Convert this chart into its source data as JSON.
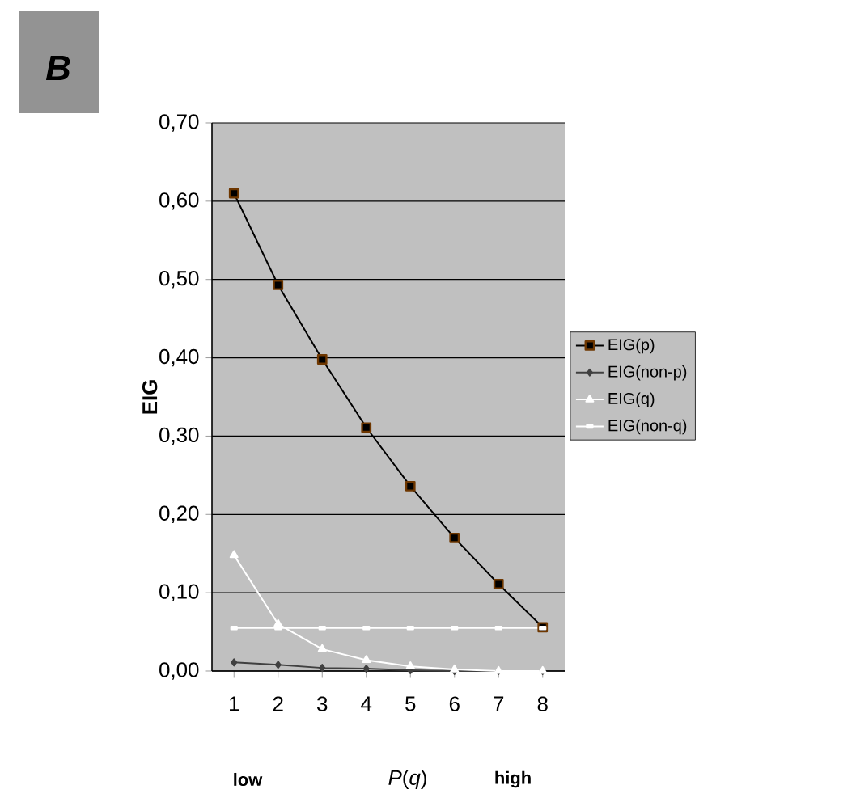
{
  "chart_data": {
    "type": "line",
    "ylabel": "EIG",
    "xlabel": "*P*(*q*)",
    "annotations": [
      "B",
      "low",
      "high"
    ],
    "categories": [
      "1",
      "2",
      "3",
      "4",
      "5",
      "6",
      "7",
      "8"
    ],
    "series": [
      {
        "name": "EIG(p)",
        "color": "#000000",
        "marker": "square",
        "values": [
          0.61,
          0.493,
          0.398,
          0.311,
          0.236,
          0.17,
          0.111,
          0.056
        ]
      },
      {
        "name": "EIG(non-p)",
        "color": "#404040",
        "marker": "diamond",
        "values": [
          0.011,
          0.008,
          0.004,
          0.003,
          0.001,
          0.0,
          0.0,
          0.0
        ]
      },
      {
        "name": "EIG(q)",
        "color": "#ffffff",
        "marker": "triangle",
        "values": [
          0.148,
          0.06,
          0.028,
          0.014,
          0.006,
          0.002,
          0.0,
          0.0
        ]
      },
      {
        "name": "EIG(non-q)",
        "color": "#ffffff",
        "marker": "square",
        "values": [
          0.055,
          0.055,
          0.055,
          0.055,
          0.055,
          0.055,
          0.055,
          0.055
        ]
      }
    ],
    "ylim": [
      0,
      0.7
    ],
    "yticks": [
      {
        "value": 0,
        "label": "0,00"
      },
      {
        "value": 0.1,
        "label": "0,10"
      },
      {
        "value": 0.2,
        "label": "0,20"
      },
      {
        "value": 0.3,
        "label": "0,30"
      },
      {
        "value": 0.4,
        "label": "0,40"
      },
      {
        "value": 0.5,
        "label": "0,50"
      },
      {
        "value": 0.6,
        "label": "0,60"
      },
      {
        "value": 0.7,
        "label": "0,70"
      }
    ],
    "grid": "y",
    "legend": "right"
  }
}
